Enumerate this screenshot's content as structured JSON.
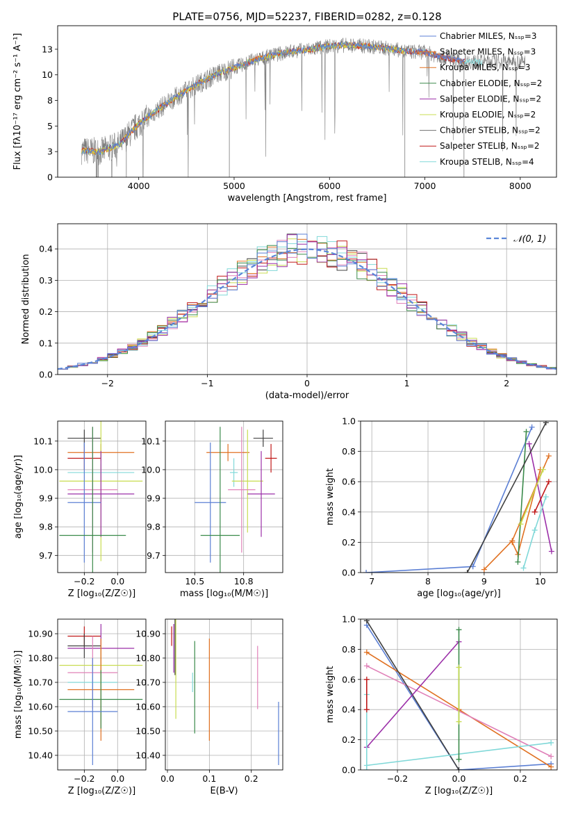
{
  "colors": {
    "Chabrier MILES": "#5b7fd4",
    "Salpeter MILES": "#e07020",
    "Kroupa MILES": "#e07020",
    "Chabrier ELODIE": "#3a8a4a",
    "Salpeter ELODIE": "#9b2fa8",
    "Kroupa ELODIE": "#c8dc50",
    "Chabrier STELIB": "#707070",
    "Salpeter STELIB": "#c01818",
    "Kroupa STELIB": "#80d8d8",
    "Salpeter ELODIE pink": "#e080b8",
    "Chabrier STELIB dark": "#404040",
    "gaussian": "#5b86d8"
  },
  "chart_data": [
    {
      "id": "spectrum",
      "type": "line",
      "title": "PLATE=0756, MJD=52237, FIBERID=0282, z=0.128",
      "xlabel": "wavelength [Angstrom, rest frame]",
      "ylabel": "Flux [fλ10⁻¹⁷ erg cm⁻² s⁻¹ A⁻¹]",
      "xlim": [
        3150,
        8380
      ],
      "ylim": [
        0,
        14.8
      ],
      "xticks": [
        4000,
        5000,
        6000,
        7000,
        8000
      ],
      "yticks": [
        0.0,
        2.5,
        5.0,
        7.5,
        10.0,
        12.5
      ],
      "legend_position": "top-right",
      "legend": [
        {
          "label": "Chabrier MILES, Nₛₛₚ=3",
          "color_key": "Chabrier MILES"
        },
        {
          "label": "Salpeter MILES, Nₛₛₚ=3",
          "color_key": "Salpeter MILES"
        },
        {
          "label": "Kroupa MILES, Nₛₛₚ=3",
          "color_key": "Kroupa MILES"
        },
        {
          "label": "Chabrier ELODIE, Nₛₛₚ=2",
          "color_key": "Chabrier ELODIE"
        },
        {
          "label": "Salpeter ELODIE, Nₛₛₚ=2",
          "color_key": "Salpeter ELODIE"
        },
        {
          "label": "Kroupa ELODIE, Nₛₛₚ=2",
          "color_key": "Kroupa ELODIE"
        },
        {
          "label": "Chabrier STELIB, Nₛₛₚ=2",
          "color_key": "Chabrier STELIB"
        },
        {
          "label": "Salpeter STELIB, Nₛₛₚ=2",
          "color_key": "Salpeter STELIB"
        },
        {
          "label": "Kroupa STELIB, Nₛₛₚ=4",
          "color_key": "Kroupa STELIB"
        }
      ],
      "continuum": {
        "x": [
          3400,
          3600,
          3800,
          4000,
          4200,
          4400,
          4600,
          4800,
          5000,
          5200,
          5400,
          5600,
          5800,
          6000,
          6200,
          6400,
          6600,
          6800,
          7000,
          7200,
          7400
        ],
        "y": [
          2.6,
          2.5,
          3.2,
          5.2,
          6.6,
          7.9,
          9.0,
          10.0,
          10.7,
          11.4,
          11.9,
          12.3,
          12.5,
          12.8,
          12.9,
          12.8,
          12.6,
          12.3,
          12.2,
          11.7,
          11.3
        ]
      }
    },
    {
      "id": "residuals",
      "type": "line",
      "xlabel": "(data-model)/error",
      "ylabel": "Normed distribution",
      "xlim": [
        -2.5,
        2.5
      ],
      "ylim": [
        0,
        0.48
      ],
      "xticks": [
        -2,
        -1,
        0,
        1,
        2
      ],
      "yticks": [
        0.0,
        0.1,
        0.2,
        0.3,
        0.4
      ],
      "legend_position": "top-right",
      "legend": [
        {
          "label": "𝒩(0, 1)",
          "color_key": "gaussian"
        }
      ]
    },
    {
      "id": "age_vs_Z",
      "type": "scatter",
      "xlabel": "Z [log₁₀(Z/Z☉)]",
      "ylabel": "age  [log₁₀(age/yr)]",
      "xlim": [
        -0.36,
        0.17
      ],
      "ylim": [
        9.64,
        10.17
      ],
      "xticks": [
        -0.2,
        0.0
      ],
      "yticks": [
        9.7,
        9.8,
        9.9,
        10.0,
        10.1
      ],
      "points": [
        {
          "color_key": "Chabrier STELIB dark",
          "x": -0.2,
          "xerr": 0.1,
          "y": 10.11,
          "yerr": 0.03
        },
        {
          "color_key": "Salpeter MILES",
          "x": -0.1,
          "xerr": 0.2,
          "y": 10.06,
          "yerr": 0.03
        },
        {
          "color_key": "Salpeter STELIB",
          "x": -0.2,
          "xerr": 0.1,
          "y": 10.04,
          "yerr": 0.04
        },
        {
          "color_key": "Kroupa STELIB",
          "x": -0.1,
          "xerr": 0.2,
          "y": 9.99,
          "yerr": 0.03
        },
        {
          "color_key": "Kroupa ELODIE",
          "x": -0.1,
          "xerr": 0.25,
          "y": 9.96,
          "yerr": 0.28
        },
        {
          "color_key": "Salpeter ELODIE pink",
          "x": -0.15,
          "xerr": 0.15,
          "y": 9.93,
          "yerr": 0.22
        },
        {
          "color_key": "Salpeter ELODIE",
          "x": -0.1,
          "xerr": 0.2,
          "y": 9.915,
          "yerr": 0.15
        },
        {
          "color_key": "Chabrier MILES",
          "x": -0.2,
          "xerr": 0.1,
          "y": 9.885,
          "yerr": 0.21
        },
        {
          "color_key": "Chabrier ELODIE",
          "x": -0.15,
          "xerr": 0.2,
          "y": 9.77,
          "yerr": 0.38
        }
      ]
    },
    {
      "id": "age_vs_mass",
      "type": "scatter",
      "xlabel": "mass [log₁₀(M/M☉)]",
      "ylabel": "",
      "xlim": [
        10.35,
        10.95
      ],
      "ylim": [
        9.64,
        10.17
      ],
      "xticks": [
        10.5,
        10.75
      ],
      "yticks": [
        9.7,
        9.8,
        9.9,
        10.0,
        10.1
      ],
      "points": [
        {
          "color_key": "Chabrier STELIB dark",
          "x": 10.85,
          "xerr": 0.05,
          "y": 10.11,
          "yerr": 0.03
        },
        {
          "color_key": "Salpeter MILES",
          "x": 10.67,
          "xerr": 0.11,
          "y": 10.06,
          "yerr": 0.03
        },
        {
          "color_key": "Salpeter STELIB",
          "x": 10.89,
          "xerr": 0.03,
          "y": 10.04,
          "yerr": 0.05
        },
        {
          "color_key": "Kroupa STELIB",
          "x": 10.7,
          "xerr": 0.02,
          "y": 9.99,
          "yerr": 0.05
        },
        {
          "color_key": "Kroupa ELODIE",
          "x": 10.77,
          "xerr": 0.08,
          "y": 9.96,
          "yerr": 0.18
        },
        {
          "color_key": "Salpeter ELODIE pink",
          "x": 10.74,
          "xerr": 0.07,
          "y": 9.93,
          "yerr": 0.22
        },
        {
          "color_key": "Salpeter ELODIE",
          "x": 10.84,
          "xerr": 0.07,
          "y": 9.915,
          "yerr": 0.15
        },
        {
          "color_key": "Chabrier MILES",
          "x": 10.58,
          "xerr": 0.08,
          "y": 9.885,
          "yerr": 0.21
        },
        {
          "color_key": "Chabrier ELODIE",
          "x": 10.63,
          "xerr": 0.1,
          "y": 9.77,
          "yerr": 0.38
        }
      ]
    },
    {
      "id": "weight_vs_age",
      "type": "line",
      "xlabel": "age  [log₁₀(age/yr)]",
      "ylabel": "mass weight",
      "xlim": [
        6.8,
        10.3
      ],
      "ylim": [
        0,
        1
      ],
      "xticks": [
        7,
        8,
        9,
        10
      ],
      "yticks": [
        0.0,
        0.2,
        0.4,
        0.6,
        0.8,
        1.0
      ],
      "series": [
        {
          "color_key": "Chabrier MILES",
          "x": [
            6.9,
            8.8,
            9.85
          ],
          "y": [
            0.0,
            0.04,
            0.96
          ]
        },
        {
          "color_key": "Salpeter MILES",
          "x": [
            9.0,
            9.5,
            10.15
          ],
          "y": [
            0.02,
            0.21,
            0.77
          ]
        },
        {
          "color_key": "Kroupa MILES",
          "x": [
            9.5,
            9.6,
            10.0
          ],
          "y": [
            0.2,
            0.12,
            0.68
          ]
        },
        {
          "color_key": "Chabrier ELODIE",
          "x": [
            9.6,
            9.75
          ],
          "y": [
            0.07,
            0.93
          ]
        },
        {
          "color_key": "Salpeter ELODIE",
          "x": [
            9.8,
            10.2
          ],
          "y": [
            0.85,
            0.14
          ]
        },
        {
          "color_key": "Kroupa ELODIE",
          "x": [
            9.65,
            10.05
          ],
          "y": [
            0.32,
            0.68
          ]
        },
        {
          "color_key": "Chabrier STELIB dark",
          "x": [
            8.7,
            10.1
          ],
          "y": [
            0.0,
            0.99
          ]
        },
        {
          "color_key": "Salpeter STELIB",
          "x": [
            9.9,
            10.15
          ],
          "y": [
            0.4,
            0.6
          ]
        },
        {
          "color_key": "Kroupa STELIB",
          "x": [
            9.7,
            9.9,
            10.1
          ],
          "y": [
            0.03,
            0.28,
            0.5
          ]
        }
      ]
    },
    {
      "id": "mass_vs_Z",
      "type": "scatter",
      "xlabel": "Z [log₁₀(Z/Z☉)]",
      "ylabel": "mass [log₁₀(M/M☉)]",
      "xlim": [
        -0.36,
        0.17
      ],
      "ylim": [
        10.34,
        10.96
      ],
      "xticks": [
        -0.2,
        0.0
      ],
      "yticks": [
        10.4,
        10.5,
        10.6,
        10.7,
        10.8,
        10.9
      ],
      "points": [
        {
          "color_key": "Salpeter STELIB",
          "x": -0.2,
          "xerr": 0.1,
          "y": 10.89,
          "yerr": 0.04
        },
        {
          "color_key": "Chabrier STELIB dark",
          "x": -0.2,
          "xerr": 0.1,
          "y": 10.85,
          "yerr": 0.05
        },
        {
          "color_key": "Salpeter ELODIE",
          "x": -0.1,
          "xerr": 0.2,
          "y": 10.84,
          "yerr": 0.1
        },
        {
          "color_key": "Kroupa ELODIE",
          "x": -0.1,
          "xerr": 0.25,
          "y": 10.77,
          "yerr": 0.08
        },
        {
          "color_key": "Salpeter ELODIE pink",
          "x": -0.15,
          "xerr": 0.15,
          "y": 10.74,
          "yerr": 0.15
        },
        {
          "color_key": "Kroupa STELIB",
          "x": -0.15,
          "xerr": 0.15,
          "y": 10.7,
          "yerr": 0.03
        },
        {
          "color_key": "Salpeter MILES",
          "x": -0.1,
          "xerr": 0.2,
          "y": 10.67,
          "yerr": 0.21
        },
        {
          "color_key": "Chabrier ELODIE",
          "x": -0.1,
          "xerr": 0.25,
          "y": 10.63,
          "yerr": 0.12
        },
        {
          "color_key": "Chabrier MILES",
          "x": -0.15,
          "xerr": 0.15,
          "y": 10.58,
          "yerr": 0.22
        }
      ]
    },
    {
      "id": "mass_vs_EBV",
      "type": "scatter",
      "xlabel": "E(B-V)",
      "ylabel": "",
      "xlim": [
        -0.005,
        0.275
      ],
      "ylim": [
        10.34,
        10.96
      ],
      "xticks": [
        0.0,
        0.1,
        0.2
      ],
      "yticks": [
        10.4,
        10.5,
        10.6,
        10.7,
        10.8,
        10.9
      ],
      "points": [
        {
          "color_key": "Salpeter STELIB",
          "x": 0.01,
          "y": 10.89,
          "yerr": 0.04
        },
        {
          "color_key": "Salpeter ELODIE",
          "x": 0.015,
          "y": 10.84,
          "yerr": 0.1
        },
        {
          "color_key": "Chabrier STELIB dark",
          "x": 0.018,
          "y": 10.85,
          "yerr": 0.12
        },
        {
          "color_key": "Kroupa ELODIE",
          "x": 0.02,
          "y": 10.77,
          "yerr": 0.22
        },
        {
          "color_key": "Kroupa STELIB",
          "x": 0.06,
          "y": 10.7,
          "yerr": 0.04
        },
        {
          "color_key": "Chabrier ELODIE",
          "x": 0.065,
          "y": 10.68,
          "yerr": 0.19
        },
        {
          "color_key": "Salpeter MILES",
          "x": 0.1,
          "y": 10.67,
          "yerr": 0.21
        },
        {
          "color_key": "Salpeter ELODIE pink",
          "x": 0.215,
          "y": 10.72,
          "yerr": 0.13
        },
        {
          "color_key": "Chabrier MILES",
          "x": 0.265,
          "y": 10.49,
          "yerr": 0.13
        }
      ]
    },
    {
      "id": "weight_vs_Z",
      "type": "line",
      "xlabel": "Z [log₁₀(Z/Z☉)]",
      "ylabel": "mass weight",
      "xlim": [
        -0.32,
        0.32
      ],
      "ylim": [
        0,
        1
      ],
      "xticks": [
        -0.2,
        0.0,
        0.2
      ],
      "yticks": [
        0.0,
        0.2,
        0.4,
        0.6,
        0.8,
        1.0
      ],
      "series": [
        {
          "color_key": "Chabrier MILES",
          "x": [
            -0.3,
            0.0,
            0.3
          ],
          "y": [
            0.96,
            0.0,
            0.04
          ]
        },
        {
          "color_key": "Salpeter MILES",
          "x": [
            -0.3,
            0.0,
            0.3
          ],
          "y": [
            0.78,
            0.4,
            0.02
          ]
        },
        {
          "color_key": "Salpeter ELODIE pink",
          "x": [
            -0.3,
            0.3
          ],
          "y": [
            0.69,
            0.09
          ]
        },
        {
          "color_key": "Chabrier STELIB dark",
          "x": [
            -0.3,
            0.0
          ],
          "y": [
            0.99,
            0.0
          ]
        },
        {
          "color_key": "Salpeter ELODIE",
          "x": [
            -0.3,
            0.0
          ],
          "y": [
            0.15,
            0.85
          ]
        },
        {
          "color_key": "Kroupa STELIB",
          "x": [
            -0.3,
            0.3
          ],
          "y": [
            0.03,
            0.18
          ]
        },
        {
          "color_key": "Kroupa STELIB",
          "x": [
            -0.3,
            -0.3
          ],
          "y": [
            0.0,
            0.5
          ]
        },
        {
          "color_key": "Salpeter STELIB",
          "x": [
            -0.3,
            -0.3
          ],
          "y": [
            0.4,
            0.6
          ]
        },
        {
          "color_key": "Chabrier ELODIE",
          "x": [
            0.0,
            0.0
          ],
          "y": [
            0.07,
            0.93
          ]
        },
        {
          "color_key": "Kroupa ELODIE",
          "x": [
            0.0,
            0.0
          ],
          "y": [
            0.32,
            0.68
          ]
        }
      ]
    }
  ]
}
